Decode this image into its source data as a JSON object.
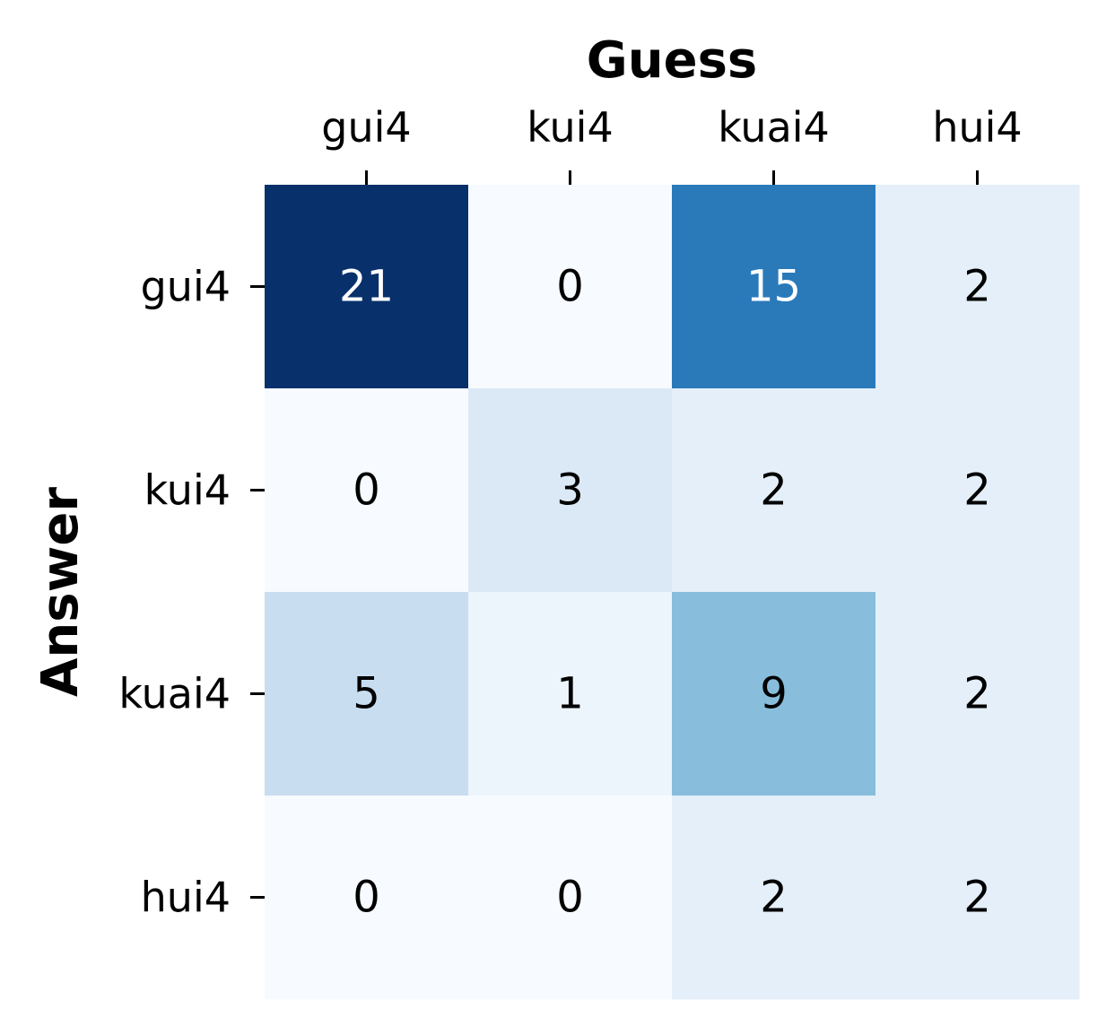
{
  "chart_data": {
    "type": "heatmap",
    "title": "",
    "xlabel": "Guess",
    "ylabel": "Answer",
    "x_categories": [
      "gui4",
      "kui4",
      "kuai4",
      "hui4"
    ],
    "y_categories": [
      "gui4",
      "kui4",
      "kuai4",
      "hui4"
    ],
    "values": [
      [
        21,
        0,
        15,
        2
      ],
      [
        0,
        3,
        2,
        2
      ],
      [
        5,
        1,
        9,
        2
      ],
      [
        0,
        0,
        2,
        2
      ]
    ],
    "colormap": "Blues",
    "colorbar": false,
    "annotations": true,
    "x_axis_position": "top",
    "grid": false
  }
}
